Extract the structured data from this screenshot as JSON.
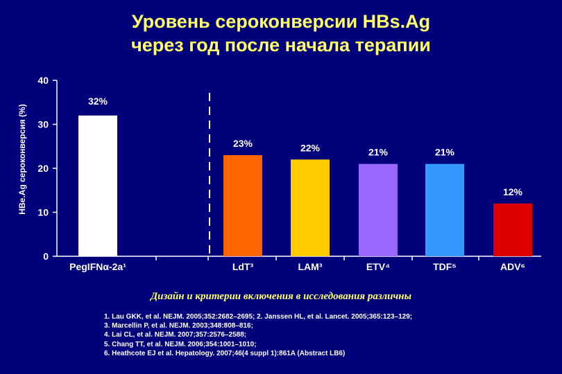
{
  "title_lines": [
    "Уровень сероконверсии HBs.Ag",
    "через год после начала терапии"
  ],
  "chart_data": {
    "type": "bar",
    "categories": [
      "PegIFNα-2a¹",
      "LdT³",
      "LAM³",
      "ETV⁴",
      "TDF⁵",
      "ADV⁶"
    ],
    "values": [
      32,
      23,
      22,
      21,
      21,
      12
    ],
    "value_labels": [
      "32%",
      "23%",
      "22%",
      "21%",
      "21%",
      "12%"
    ],
    "bar_colors": [
      "#ffffff",
      "#ff6600",
      "#ffcc00",
      "#9966ff",
      "#3399ff",
      "#dd0000"
    ],
    "ylabel": "HBe.Ag сероконверсия (%)",
    "ylim": [
      0,
      40
    ],
    "yticks": [
      "0",
      "10",
      "20",
      "30",
      "40"
    ],
    "grid": false,
    "separator": "dashed vertical line between PegIFNα-2a and LdT"
  },
  "note": "Дизайн и критерии включения в исследования различны",
  "references": [
    "1. Lau GKK, et al. NEJM. 2005;352:2682–2695; 2. Janssen HL, et al. Lancet. 2005;365:123–129;",
    "3. Marcellin P, et al. NEJM. 2003;348:808–816;",
    "4. Lai CL, et al. NEJM. 2007;357:2576–2588;",
    "5. Chang TT, et al. NEJM. 2006;354:1001–1010;",
    "6. Heathcote EJ et al. Hepatology. 2007;46(4 suppl 1):861A (Abstract LB6)"
  ]
}
